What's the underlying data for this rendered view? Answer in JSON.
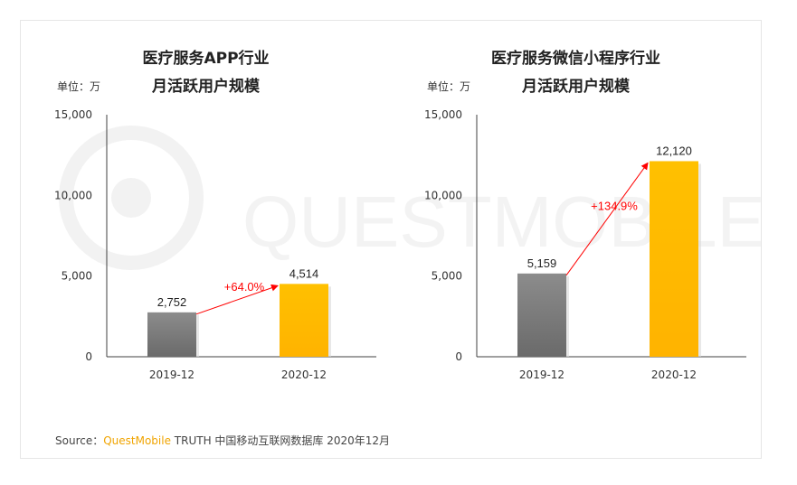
{
  "colors": {
    "bar_2019": "#7f7f7f",
    "bar_2020": "#ffc000",
    "growth_arrow": "#ff0000",
    "axis": "#404040",
    "watermark": "#f3f3f3"
  },
  "unit_label": "单位：万",
  "watermark_text": "QUESTMOBILE",
  "source": {
    "prefix": "Source：",
    "brand": "QuestMobile",
    "rest": " TRUTH 中国移动互联网数据库 2020年12月"
  },
  "chart_data": [
    {
      "type": "bar",
      "title": [
        "医疗服务APP行业",
        "月活跃用户规模"
      ],
      "categories": [
        "2019-12",
        "2020-12"
      ],
      "values": [
        2752,
        4514
      ],
      "value_labels": [
        "2,752",
        "4,514"
      ],
      "ylim": [
        0,
        15000
      ],
      "yticks": [
        0,
        5000,
        10000,
        15000
      ],
      "ytick_labels": [
        "0",
        "5,000",
        "10,000",
        "15,000"
      ],
      "growth_label": "+64.0%",
      "ylabel": "单位：万",
      "grid": false
    },
    {
      "type": "bar",
      "title": [
        "医疗服务微信小程序行业",
        "月活跃用户规模"
      ],
      "categories": [
        "2019-12",
        "2020-12"
      ],
      "values": [
        5159,
        12120
      ],
      "value_labels": [
        "5,159",
        "12,120"
      ],
      "ylim": [
        0,
        15000
      ],
      "yticks": [
        0,
        5000,
        10000,
        15000
      ],
      "ytick_labels": [
        "0",
        "5,000",
        "10,000",
        "15,000"
      ],
      "growth_label": "+134.9%",
      "ylabel": "单位：万",
      "grid": false
    }
  ]
}
